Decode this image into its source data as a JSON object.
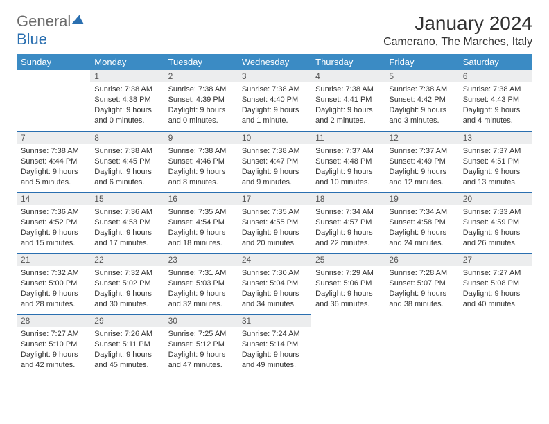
{
  "logo": {
    "word1": "General",
    "word2": "Blue"
  },
  "title": "January 2024",
  "location": "Camerano, The Marches, Italy",
  "colors": {
    "header_bg": "#3b8bc4",
    "header_text": "#ffffff",
    "daynum_bg": "#ecedee",
    "rule": "#2a6fb0",
    "logo_gray": "#6b6b6b",
    "logo_blue": "#2a6fb0"
  },
  "weekdays": [
    "Sunday",
    "Monday",
    "Tuesday",
    "Wednesday",
    "Thursday",
    "Friday",
    "Saturday"
  ],
  "layout": {
    "first_weekday_index": 1,
    "days_in_month": 31
  },
  "days": {
    "1": {
      "sunrise": "7:38 AM",
      "sunset": "4:38 PM",
      "daylight": "9 hours and 0 minutes."
    },
    "2": {
      "sunrise": "7:38 AM",
      "sunset": "4:39 PM",
      "daylight": "9 hours and 0 minutes."
    },
    "3": {
      "sunrise": "7:38 AM",
      "sunset": "4:40 PM",
      "daylight": "9 hours and 1 minute."
    },
    "4": {
      "sunrise": "7:38 AM",
      "sunset": "4:41 PM",
      "daylight": "9 hours and 2 minutes."
    },
    "5": {
      "sunrise": "7:38 AM",
      "sunset": "4:42 PM",
      "daylight": "9 hours and 3 minutes."
    },
    "6": {
      "sunrise": "7:38 AM",
      "sunset": "4:43 PM",
      "daylight": "9 hours and 4 minutes."
    },
    "7": {
      "sunrise": "7:38 AM",
      "sunset": "4:44 PM",
      "daylight": "9 hours and 5 minutes."
    },
    "8": {
      "sunrise": "7:38 AM",
      "sunset": "4:45 PM",
      "daylight": "9 hours and 6 minutes."
    },
    "9": {
      "sunrise": "7:38 AM",
      "sunset": "4:46 PM",
      "daylight": "9 hours and 8 minutes."
    },
    "10": {
      "sunrise": "7:38 AM",
      "sunset": "4:47 PM",
      "daylight": "9 hours and 9 minutes."
    },
    "11": {
      "sunrise": "7:37 AM",
      "sunset": "4:48 PM",
      "daylight": "9 hours and 10 minutes."
    },
    "12": {
      "sunrise": "7:37 AM",
      "sunset": "4:49 PM",
      "daylight": "9 hours and 12 minutes."
    },
    "13": {
      "sunrise": "7:37 AM",
      "sunset": "4:51 PM",
      "daylight": "9 hours and 13 minutes."
    },
    "14": {
      "sunrise": "7:36 AM",
      "sunset": "4:52 PM",
      "daylight": "9 hours and 15 minutes."
    },
    "15": {
      "sunrise": "7:36 AM",
      "sunset": "4:53 PM",
      "daylight": "9 hours and 17 minutes."
    },
    "16": {
      "sunrise": "7:35 AM",
      "sunset": "4:54 PM",
      "daylight": "9 hours and 18 minutes."
    },
    "17": {
      "sunrise": "7:35 AM",
      "sunset": "4:55 PM",
      "daylight": "9 hours and 20 minutes."
    },
    "18": {
      "sunrise": "7:34 AM",
      "sunset": "4:57 PM",
      "daylight": "9 hours and 22 minutes."
    },
    "19": {
      "sunrise": "7:34 AM",
      "sunset": "4:58 PM",
      "daylight": "9 hours and 24 minutes."
    },
    "20": {
      "sunrise": "7:33 AM",
      "sunset": "4:59 PM",
      "daylight": "9 hours and 26 minutes."
    },
    "21": {
      "sunrise": "7:32 AM",
      "sunset": "5:00 PM",
      "daylight": "9 hours and 28 minutes."
    },
    "22": {
      "sunrise": "7:32 AM",
      "sunset": "5:02 PM",
      "daylight": "9 hours and 30 minutes."
    },
    "23": {
      "sunrise": "7:31 AM",
      "sunset": "5:03 PM",
      "daylight": "9 hours and 32 minutes."
    },
    "24": {
      "sunrise": "7:30 AM",
      "sunset": "5:04 PM",
      "daylight": "9 hours and 34 minutes."
    },
    "25": {
      "sunrise": "7:29 AM",
      "sunset": "5:06 PM",
      "daylight": "9 hours and 36 minutes."
    },
    "26": {
      "sunrise": "7:28 AM",
      "sunset": "5:07 PM",
      "daylight": "9 hours and 38 minutes."
    },
    "27": {
      "sunrise": "7:27 AM",
      "sunset": "5:08 PM",
      "daylight": "9 hours and 40 minutes."
    },
    "28": {
      "sunrise": "7:27 AM",
      "sunset": "5:10 PM",
      "daylight": "9 hours and 42 minutes."
    },
    "29": {
      "sunrise": "7:26 AM",
      "sunset": "5:11 PM",
      "daylight": "9 hours and 45 minutes."
    },
    "30": {
      "sunrise": "7:25 AM",
      "sunset": "5:12 PM",
      "daylight": "9 hours and 47 minutes."
    },
    "31": {
      "sunrise": "7:24 AM",
      "sunset": "5:14 PM",
      "daylight": "9 hours and 49 minutes."
    }
  },
  "labels": {
    "sunrise": "Sunrise:",
    "sunset": "Sunset:",
    "daylight": "Daylight:"
  }
}
